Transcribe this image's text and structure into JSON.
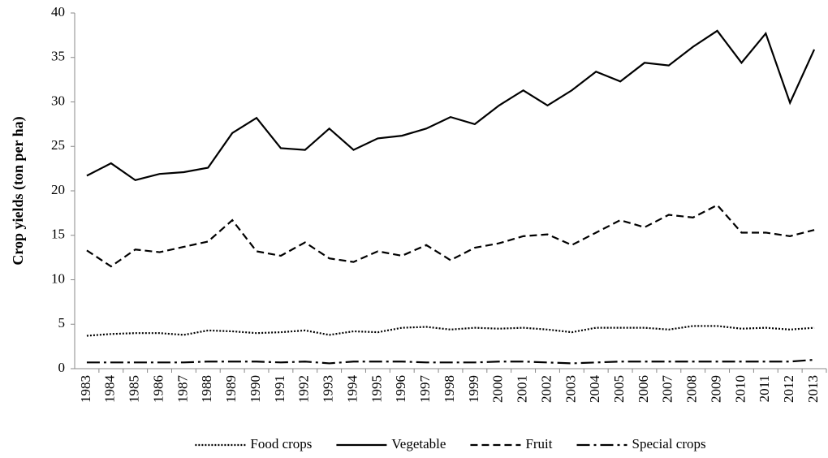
{
  "chart_data": {
    "type": "line",
    "y_label": "Crop yields (ton per ha)",
    "categories": [
      "1983",
      "1984",
      "1985",
      "1986",
      "1987",
      "1988",
      "1989",
      "1990",
      "1991",
      "1992",
      "1993",
      "1994",
      "1995",
      "1996",
      "1997",
      "1998",
      "1999",
      "2000",
      "2001",
      "2002",
      "2003",
      "2004",
      "2005",
      "2006",
      "2007",
      "2008",
      "2009",
      "2010",
      "2011",
      "2012",
      "2013"
    ],
    "series": [
      {
        "name": "Food crops",
        "color": "#000000",
        "dash": "dotted",
        "values": [
          3.7,
          3.9,
          4.0,
          4.0,
          3.8,
          4.3,
          4.2,
          4.0,
          4.1,
          4.3,
          3.8,
          4.2,
          4.1,
          4.6,
          4.7,
          4.4,
          4.6,
          4.5,
          4.6,
          4.4,
          4.1,
          4.6,
          4.6,
          4.6,
          4.4,
          4.8,
          4.8,
          4.5,
          4.6,
          4.4,
          4.6
        ]
      },
      {
        "name": "Vegetable",
        "color": "#000000",
        "dash": "solid",
        "values": [
          21.7,
          23.1,
          21.2,
          21.9,
          22.1,
          22.6,
          26.5,
          28.2,
          24.8,
          24.6,
          27.0,
          24.6,
          25.9,
          26.2,
          27.0,
          28.3,
          27.5,
          29.6,
          31.3,
          29.6,
          31.3,
          33.4,
          32.3,
          34.4,
          34.1,
          36.2,
          38.0,
          34.4,
          37.7,
          29.9,
          35.9
        ]
      },
      {
        "name": "Fruit",
        "color": "#000000",
        "dash": "dashed",
        "values": [
          13.3,
          11.5,
          13.4,
          13.1,
          13.7,
          14.3,
          16.7,
          13.2,
          12.7,
          14.2,
          12.4,
          12.0,
          13.2,
          12.7,
          13.9,
          12.2,
          13.6,
          14.1,
          14.9,
          15.1,
          13.9,
          15.3,
          16.7,
          15.9,
          17.3,
          17.0,
          18.4,
          15.3,
          15.3,
          14.9,
          15.6
        ]
      },
      {
        "name": "Special crops",
        "color": "#000000",
        "dash": "dashdot",
        "values": [
          0.7,
          0.7,
          0.7,
          0.7,
          0.7,
          0.8,
          0.8,
          0.8,
          0.7,
          0.8,
          0.6,
          0.8,
          0.8,
          0.8,
          0.7,
          0.7,
          0.7,
          0.8,
          0.8,
          0.7,
          0.6,
          0.7,
          0.8,
          0.8,
          0.8,
          0.8,
          0.8,
          0.8,
          0.8,
          0.8,
          1.0
        ]
      }
    ],
    "ylim": [
      0,
      40
    ],
    "yticks": [
      0,
      5,
      10,
      15,
      20,
      25,
      30,
      35,
      40
    ],
    "grid": false,
    "legend": "bottom"
  }
}
